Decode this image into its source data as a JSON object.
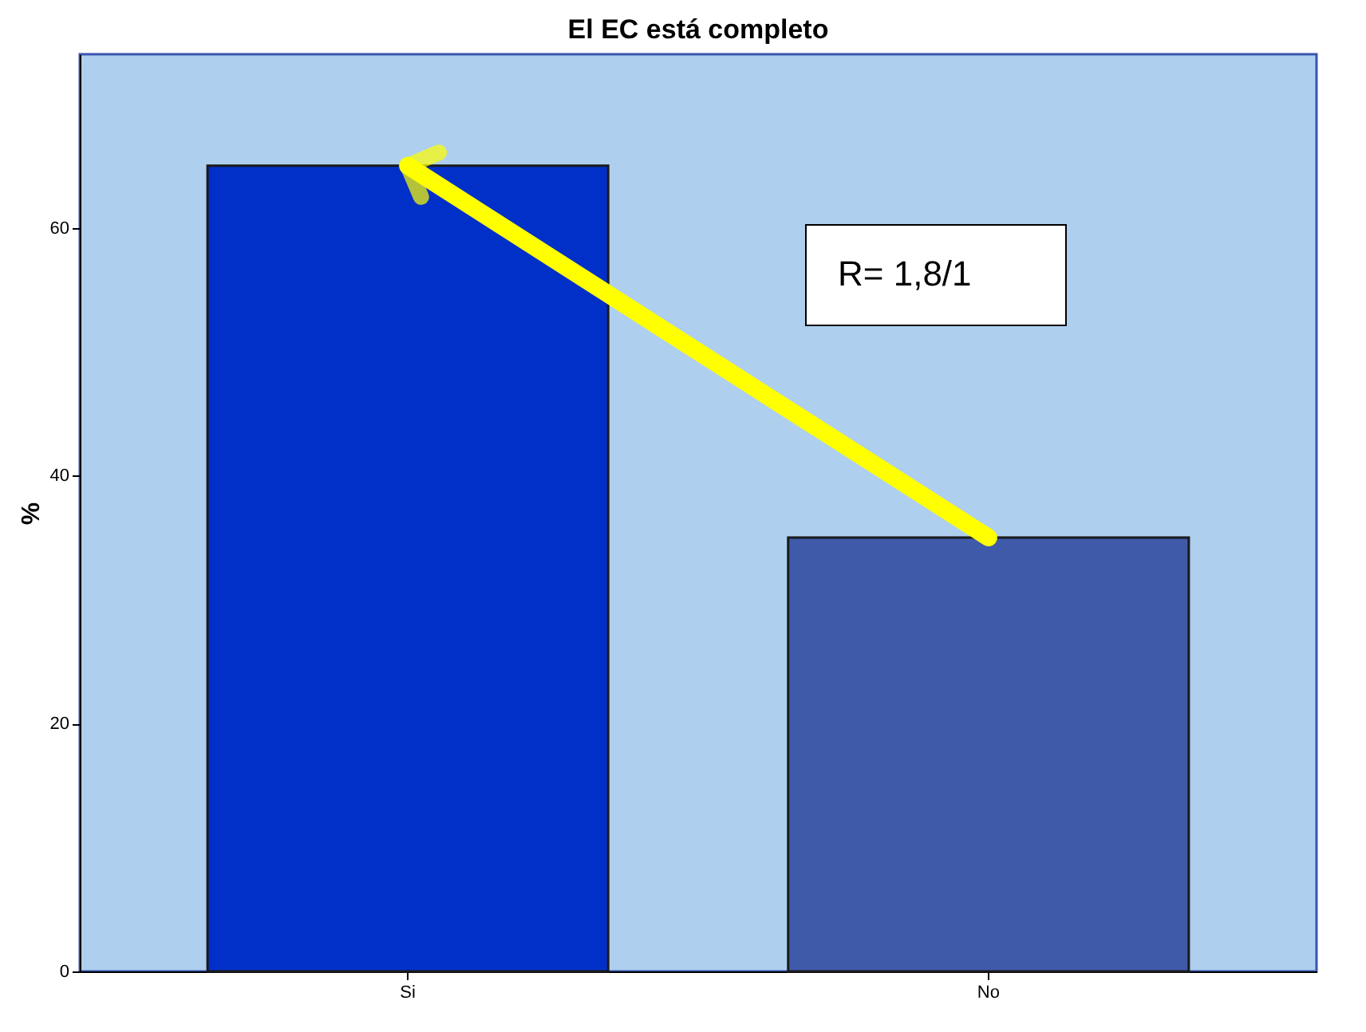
{
  "chart_data": {
    "type": "bar",
    "title": "El EC está completo",
    "ylabel": "%",
    "categories": [
      "Si",
      "No"
    ],
    "values": [
      65,
      35
    ],
    "colors": [
      "#0030c8",
      "#3f5aa9"
    ],
    "ylim": [
      0,
      74
    ],
    "yticks": [
      0,
      20,
      40,
      60
    ],
    "grid": false,
    "annotations": [
      "R= 1,8/1"
    ]
  }
}
